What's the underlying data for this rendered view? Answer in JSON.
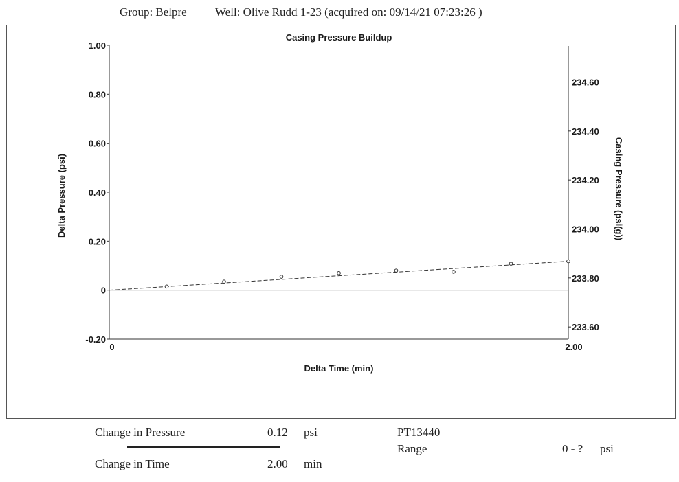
{
  "header": {
    "group": "Group: Belpre",
    "well": "Well: Olive Rudd 1-23 (acquired on: 09/14/21 07:23:26 )"
  },
  "chart_data": {
    "type": "scatter",
    "title": "Casing Pressure Buildup",
    "xlabel": "Delta Time (min)",
    "ylabel": "Delta Pressure (psi)",
    "y2label": "Casing Pressure (psi(g))",
    "xlim": [
      0,
      2.0
    ],
    "ylim": [
      -0.2,
      1.0
    ],
    "y2lim": [
      233.55,
      234.75
    ],
    "x_ticks": [
      0,
      2.0
    ],
    "x_tick_labels": [
      "0",
      "2.00"
    ],
    "y_ticks": [
      -0.2,
      0,
      0.2,
      0.4,
      0.6,
      0.8,
      1.0
    ],
    "y_tick_labels": [
      "-0.20",
      "0",
      "0.20",
      "0.40",
      "0.60",
      "0.80",
      "1.00"
    ],
    "y2_ticks": [
      233.6,
      233.8,
      234.0,
      234.2,
      234.4,
      234.6
    ],
    "y2_tick_labels": [
      "233.60",
      "233.80",
      "234.00",
      "234.20",
      "234.40",
      "234.60"
    ],
    "series": [
      {
        "style": "markers",
        "x": [
          0.25,
          0.5,
          0.75,
          1.0,
          1.25,
          1.5,
          1.75,
          2.0
        ],
        "y": [
          0.015,
          0.035,
          0.055,
          0.07,
          0.08,
          0.075,
          0.108,
          0.118
        ]
      }
    ],
    "trendline": {
      "x": [
        0,
        2.0
      ],
      "y": [
        0.0,
        0.118
      ],
      "style": "dashed"
    },
    "reference_line": {
      "y": 0
    },
    "grid": false,
    "legend": "none"
  },
  "footer": {
    "change_pressure_label": "Change in Pressure",
    "change_pressure_value": "0.12",
    "change_pressure_unit": "psi",
    "change_time_label": "Change in Time",
    "change_time_value": "2.00",
    "change_time_unit": "min",
    "sensor": "PT13440",
    "range_label": "Range",
    "range_value": "0 - ?",
    "range_unit": "psi"
  }
}
